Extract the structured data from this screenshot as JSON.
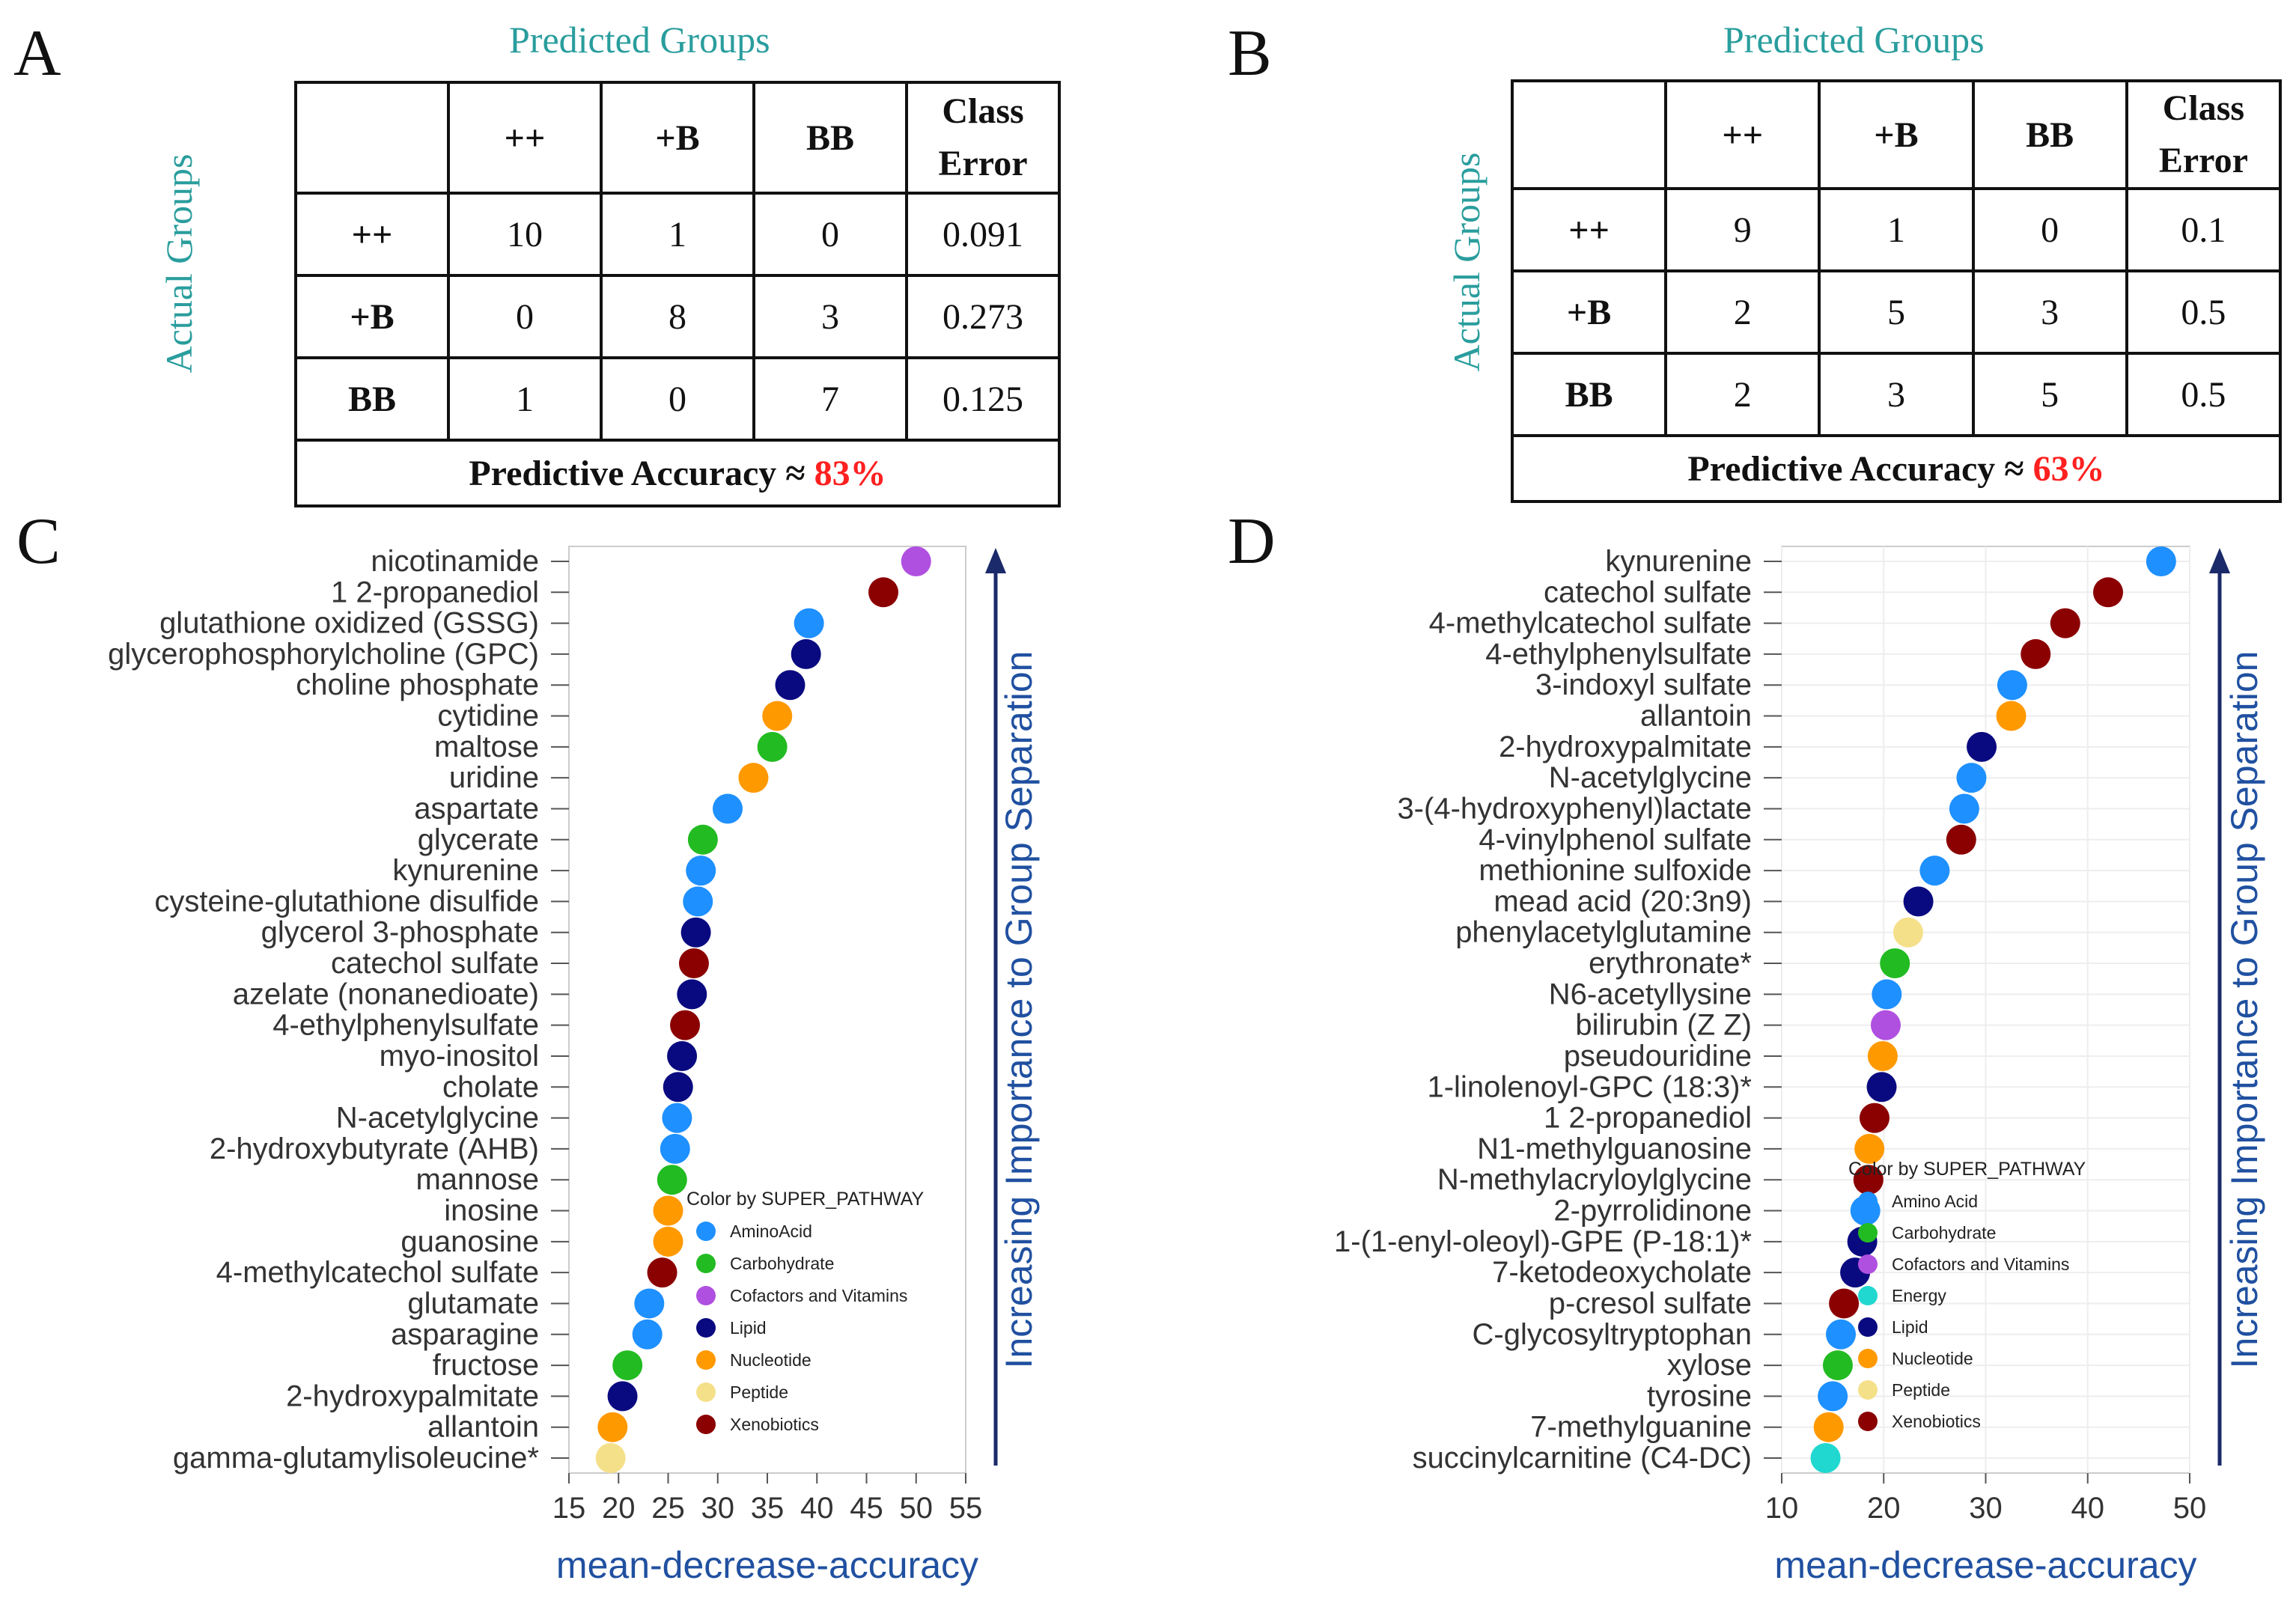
{
  "panels": {
    "A": {
      "letter": "A",
      "title": "Predicted Groups",
      "ylabel": "Actual Groups",
      "headers": [
        "",
        "++",
        "+B",
        "BB",
        "Class Error"
      ],
      "rows": [
        {
          "label": "++",
          "cells": [
            "10",
            "1",
            "0",
            "0.091"
          ]
        },
        {
          "label": "+B",
          "cells": [
            "0",
            "8",
            "3",
            "0.273"
          ]
        },
        {
          "label": "BB",
          "cells": [
            "1",
            "0",
            "7",
            "0.125"
          ]
        }
      ],
      "accuracy_label": "Predictive Accuracy ≈",
      "accuracy_value": "83%"
    },
    "B": {
      "letter": "B",
      "title": "Predicted Groups",
      "ylabel": "Actual Groups",
      "headers": [
        "",
        "++",
        "+B",
        "BB",
        "Class Error"
      ],
      "rows": [
        {
          "label": "++",
          "cells": [
            "9",
            "1",
            "0",
            "0.1"
          ]
        },
        {
          "label": "+B",
          "cells": [
            "2",
            "5",
            "3",
            "0.5"
          ]
        },
        {
          "label": "BB",
          "cells": [
            "2",
            "3",
            "5",
            "0.5"
          ]
        }
      ],
      "accuracy_label": "Predictive Accuracy ≈",
      "accuracy_value": "63%"
    }
  },
  "colors": {
    "Amino Acid": "#1e90ff",
    "Carbohydrate": "#22bb22",
    "Cofactors and Vitamins": "#b050e0",
    "Energy": "#20d8d0",
    "Lipid": "#0a0a80",
    "Nucleotide": "#ff9900",
    "Peptide": "#f5e08a",
    "Xenobiotics": "#8b0000"
  },
  "chart_data": [
    {
      "panel": "C",
      "type": "scatter",
      "xlabel": "mean-decrease-accuracy",
      "side_label": "Increasing Importance to Group Separation",
      "xlim": [
        15,
        55
      ],
      "xticks": [
        "15",
        "20",
        "25",
        "30",
        "35",
        "40",
        "45",
        "50",
        "55"
      ],
      "legend_title": "Color by SUPER_PATHWAY",
      "legend": [
        "Amino Acid",
        "Carbohydrate",
        "Cofactors and Vitamins",
        "Lipid",
        "Nucleotide",
        "Peptide",
        "Xenobiotics"
      ],
      "legend_labels": [
        "AminoAcid",
        "Carbohydrate",
        "Cofactors and Vitamins",
        "Lipid",
        "Nucleotide",
        "Peptide",
        "Xenobiotics"
      ],
      "points": [
        {
          "label": "nicotinamide",
          "value": 50.0,
          "pathway": "Cofactors and Vitamins"
        },
        {
          "label": "1 2-propanediol",
          "value": 46.7,
          "pathway": "Xenobiotics"
        },
        {
          "label": "glutathione oxidized (GSSG)",
          "value": 39.2,
          "pathway": "Amino Acid"
        },
        {
          "label": "glycerophosphorylcholine (GPC)",
          "value": 38.9,
          "pathway": "Lipid"
        },
        {
          "label": "choline phosphate",
          "value": 37.3,
          "pathway": "Lipid"
        },
        {
          "label": "cytidine",
          "value": 36.0,
          "pathway": "Nucleotide"
        },
        {
          "label": "maltose",
          "value": 35.5,
          "pathway": "Carbohydrate"
        },
        {
          "label": "uridine",
          "value": 33.6,
          "pathway": "Nucleotide"
        },
        {
          "label": "aspartate",
          "value": 31.0,
          "pathway": "Amino Acid"
        },
        {
          "label": "glycerate",
          "value": 28.5,
          "pathway": "Carbohydrate"
        },
        {
          "label": "kynurenine",
          "value": 28.3,
          "pathway": "Amino Acid"
        },
        {
          "label": "cysteine-glutathione disulfide",
          "value": 28.0,
          "pathway": "Amino Acid"
        },
        {
          "label": "glycerol 3-phosphate",
          "value": 27.8,
          "pathway": "Lipid"
        },
        {
          "label": "catechol sulfate",
          "value": 27.6,
          "pathway": "Xenobiotics"
        },
        {
          "label": "azelate (nonanedioate)",
          "value": 27.4,
          "pathway": "Lipid"
        },
        {
          "label": "4-ethylphenylsulfate",
          "value": 26.7,
          "pathway": "Xenobiotics"
        },
        {
          "label": "myo-inositol",
          "value": 26.4,
          "pathway": "Lipid"
        },
        {
          "label": "cholate",
          "value": 26.0,
          "pathway": "Lipid"
        },
        {
          "label": "N-acetylglycine",
          "value": 25.9,
          "pathway": "Amino Acid"
        },
        {
          "label": "2-hydroxybutyrate (AHB)",
          "value": 25.7,
          "pathway": "Amino Acid"
        },
        {
          "label": "mannose",
          "value": 25.4,
          "pathway": "Carbohydrate"
        },
        {
          "label": "inosine",
          "value": 25.0,
          "pathway": "Nucleotide"
        },
        {
          "label": "guanosine",
          "value": 25.0,
          "pathway": "Nucleotide"
        },
        {
          "label": "4-methylcatechol sulfate",
          "value": 24.4,
          "pathway": "Xenobiotics"
        },
        {
          "label": "glutamate",
          "value": 23.1,
          "pathway": "Amino Acid"
        },
        {
          "label": "asparagine",
          "value": 22.9,
          "pathway": "Amino Acid"
        },
        {
          "label": "fructose",
          "value": 20.9,
          "pathway": "Carbohydrate"
        },
        {
          "label": "2-hydroxypalmitate",
          "value": 20.4,
          "pathway": "Lipid"
        },
        {
          "label": "allantoin",
          "value": 19.4,
          "pathway": "Nucleotide"
        },
        {
          "label": "gamma-glutamylisoleucine*",
          "value": 19.2,
          "pathway": "Peptide"
        }
      ]
    },
    {
      "panel": "D",
      "type": "scatter",
      "xlabel": "mean-decrease-accuracy",
      "side_label": "Increasing Importance to Group Separation",
      "xlim": [
        10,
        50
      ],
      "xticks": [
        "10",
        "20",
        "30",
        "40",
        "50"
      ],
      "legend_title": "Color by SUPER_PATHWAY",
      "legend": [
        "Amino Acid",
        "Carbohydrate",
        "Cofactors and Vitamins",
        "Energy",
        "Lipid",
        "Nucleotide",
        "Peptide",
        "Xenobiotics"
      ],
      "legend_labels": [
        "Amino Acid",
        "Carbohydrate",
        "Cofactors and Vitamins",
        "Energy",
        "Lipid",
        "Nucleotide",
        "Peptide",
        "Xenobiotics"
      ],
      "points": [
        {
          "label": "kynurenine",
          "value": 47.2,
          "pathway": "Amino Acid"
        },
        {
          "label": "catechol sulfate",
          "value": 42.0,
          "pathway": "Xenobiotics"
        },
        {
          "label": "4-methylcatechol sulfate",
          "value": 37.8,
          "pathway": "Xenobiotics"
        },
        {
          "label": "4-ethylphenylsulfate",
          "value": 34.9,
          "pathway": "Xenobiotics"
        },
        {
          "label": "3-indoxyl sulfate",
          "value": 32.6,
          "pathway": "Amino Acid"
        },
        {
          "label": "allantoin",
          "value": 32.5,
          "pathway": "Nucleotide"
        },
        {
          "label": "2-hydroxypalmitate",
          "value": 29.6,
          "pathway": "Lipid"
        },
        {
          "label": "N-acetylglycine",
          "value": 28.6,
          "pathway": "Amino Acid"
        },
        {
          "label": "3-(4-hydroxyphenyl)lactate",
          "value": 27.9,
          "pathway": "Amino Acid"
        },
        {
          "label": "4-vinylphenol sulfate",
          "value": 27.6,
          "pathway": "Xenobiotics"
        },
        {
          "label": "methionine sulfoxide",
          "value": 25.0,
          "pathway": "Amino Acid"
        },
        {
          "label": "mead acid (20:3n9)",
          "value": 23.4,
          "pathway": "Lipid"
        },
        {
          "label": "phenylacetylglutamine",
          "value": 22.4,
          "pathway": "Peptide"
        },
        {
          "label": "erythronate*",
          "value": 21.1,
          "pathway": "Carbohydrate"
        },
        {
          "label": "N6-acetyllysine",
          "value": 20.3,
          "pathway": "Amino Acid"
        },
        {
          "label": "bilirubin (Z Z)",
          "value": 20.2,
          "pathway": "Cofactors and Vitamins"
        },
        {
          "label": "pseudouridine",
          "value": 19.9,
          "pathway": "Nucleotide"
        },
        {
          "label": "1-linolenoyl-GPC (18:3)*",
          "value": 19.8,
          "pathway": "Lipid"
        },
        {
          "label": "1 2-propanediol",
          "value": 19.1,
          "pathway": "Xenobiotics"
        },
        {
          "label": "N1-methylguanosine",
          "value": 18.6,
          "pathway": "Nucleotide"
        },
        {
          "label": "N-methylacryloylglycine",
          "value": 18.5,
          "pathway": "Xenobiotics"
        },
        {
          "label": "2-pyrrolidinone",
          "value": 18.2,
          "pathway": "Amino Acid"
        },
        {
          "label": "1-(1-enyl-oleoyl)-GPE (P-18:1)*",
          "value": 17.9,
          "pathway": "Lipid"
        },
        {
          "label": "7-ketodeoxycholate",
          "value": 17.2,
          "pathway": "Lipid"
        },
        {
          "label": "p-cresol sulfate",
          "value": 16.1,
          "pathway": "Xenobiotics"
        },
        {
          "label": "C-glycosyltryptophan",
          "value": 15.8,
          "pathway": "Amino Acid"
        },
        {
          "label": "xylose",
          "value": 15.5,
          "pathway": "Carbohydrate"
        },
        {
          "label": "tyrosine",
          "value": 15.0,
          "pathway": "Amino Acid"
        },
        {
          "label": "7-methylguanine",
          "value": 14.6,
          "pathway": "Nucleotide"
        },
        {
          "label": "succinylcarnitine (C4-DC)",
          "value": 14.3,
          "pathway": "Energy"
        }
      ]
    }
  ]
}
